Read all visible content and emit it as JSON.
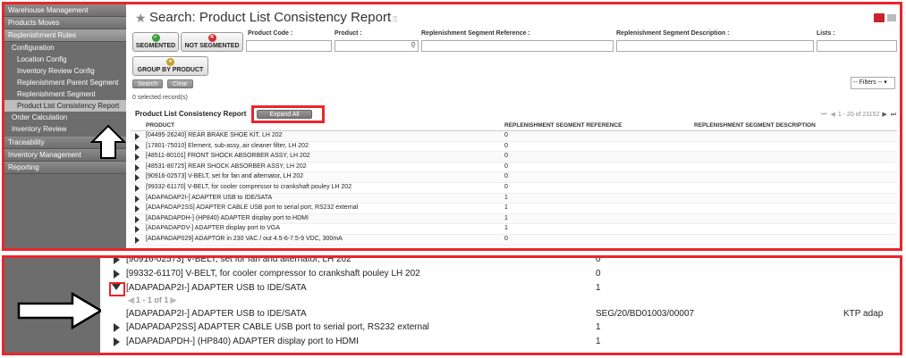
{
  "sidebar": {
    "sections": [
      {
        "label": "Warehouse Management"
      },
      {
        "label": "Products Moves"
      },
      {
        "label": "Replenishment Rules"
      }
    ],
    "submenu": "Configuration",
    "items": [
      {
        "label": "Location Config"
      },
      {
        "label": "Inventory Review Config"
      },
      {
        "label": "Replenishment Parent Segment"
      },
      {
        "label": "Replenishment Segment"
      },
      {
        "label": "Product List Consistency Report"
      }
    ],
    "top_items": [
      {
        "label": "Order Calculation"
      },
      {
        "label": "Inventory Review"
      }
    ],
    "bottom_sections": [
      {
        "label": "Traceability"
      },
      {
        "label": "Inventory Management"
      },
      {
        "label": "Reporting"
      }
    ]
  },
  "page": {
    "title": "Search: Product List Consistency Report",
    "star_icon": "star-icon",
    "view_toggle_colors": {
      "active": "#c8232c",
      "inactive": "#bbbbbb"
    }
  },
  "filters": {
    "segmented_label": "SEGMENTED",
    "not_segmented_label": "NOT SEGMENTED",
    "group_by_label": "GROUP BY PRODUCT",
    "fields": [
      {
        "label": "Product Code :"
      },
      {
        "label": "Product :"
      },
      {
        "label": "Replenishment Segment Reference :"
      },
      {
        "label": "Replenishment Segment Description :"
      },
      {
        "label": "Lists :"
      }
    ],
    "search_btn": "Search",
    "clear_btn": "Clear",
    "filters_select": "-- Filters --"
  },
  "list": {
    "selected_count": "0 selected record(s)",
    "caption": "Product List Consistency Report",
    "expand_all": "Expand All",
    "pager_text": "1 - 20 of 21152",
    "columns": [
      "PRODUCT",
      "REPLENISHMENT SEGMENT REFERENCE",
      "REPLENISHMENT SEGMENT DESCRIPTION"
    ],
    "rows": [
      {
        "product": "[04495-26240] REAR BRAKE SHOE KIT, LH 202",
        "ref": "0"
      },
      {
        "product": "[17801-75010] Element, sub-assy, air cleaner filter, LH 202",
        "ref": "0"
      },
      {
        "product": "[48511-80101] FRONT SHOCK ABSORBER ASSY, LH 202",
        "ref": "0"
      },
      {
        "product": "[48531-80725] REAR SHOCK ABSORBER ASSY, LH 202",
        "ref": "0"
      },
      {
        "product": "[90916-02573] V-BELT, set for fan and alternator, LH 202",
        "ref": "0"
      },
      {
        "product": "[99332-61170] V-BELT, for cooler compressor to crankshaft pouley LH 202",
        "ref": "0"
      },
      {
        "product": "[ADAPADAP2I-] ADAPTER USB to IDE/SATA",
        "ref": "1"
      },
      {
        "product": "[ADAPADAP2SS] ADAPTER CABLE USB port to serial port, RS232 external",
        "ref": "1"
      },
      {
        "product": "[ADAPADAPDH-] (HP840) ADAPTER display port to HDMI",
        "ref": "1"
      },
      {
        "product": "[ADAPADAPDV-] ADAPTER display port to VGA",
        "ref": "1"
      },
      {
        "product": "[ADAPADAP029] ADAPTOR in 230 VAC / out 4.5-6-7.5-9 VDC, 300mA",
        "ref": "0"
      }
    ]
  },
  "zoom": {
    "rows": [
      {
        "product": "[90916-02573] V-BELT, set for fan and alternator, LH 202",
        "ref": "0"
      },
      {
        "product": "[99332-61170] V-BELT, for cooler compressor to crankshaft pouley LH 202",
        "ref": "0"
      },
      {
        "product": "[ADAPADAP2I-] ADAPTER USB to IDE/SATA",
        "ref": "1"
      }
    ],
    "sub_pager": "1 - 1 of 1",
    "expanded_row": {
      "product": "[ADAPADAP2I-] ADAPTER USB to IDE/SATA",
      "ref": "SEG/20/BD01003/00007",
      "desc": "KTP adap"
    },
    "after_rows": [
      {
        "product": "[ADAPADAP2SS] ADAPTER CABLE USB port to serial port, RS232 external",
        "ref": "1"
      },
      {
        "product": "[ADAPADAPDH-] (HP840) ADAPTER display port to HDMI",
        "ref": "1"
      }
    ]
  },
  "annotations": {
    "highlight_color": "#e8262c"
  }
}
